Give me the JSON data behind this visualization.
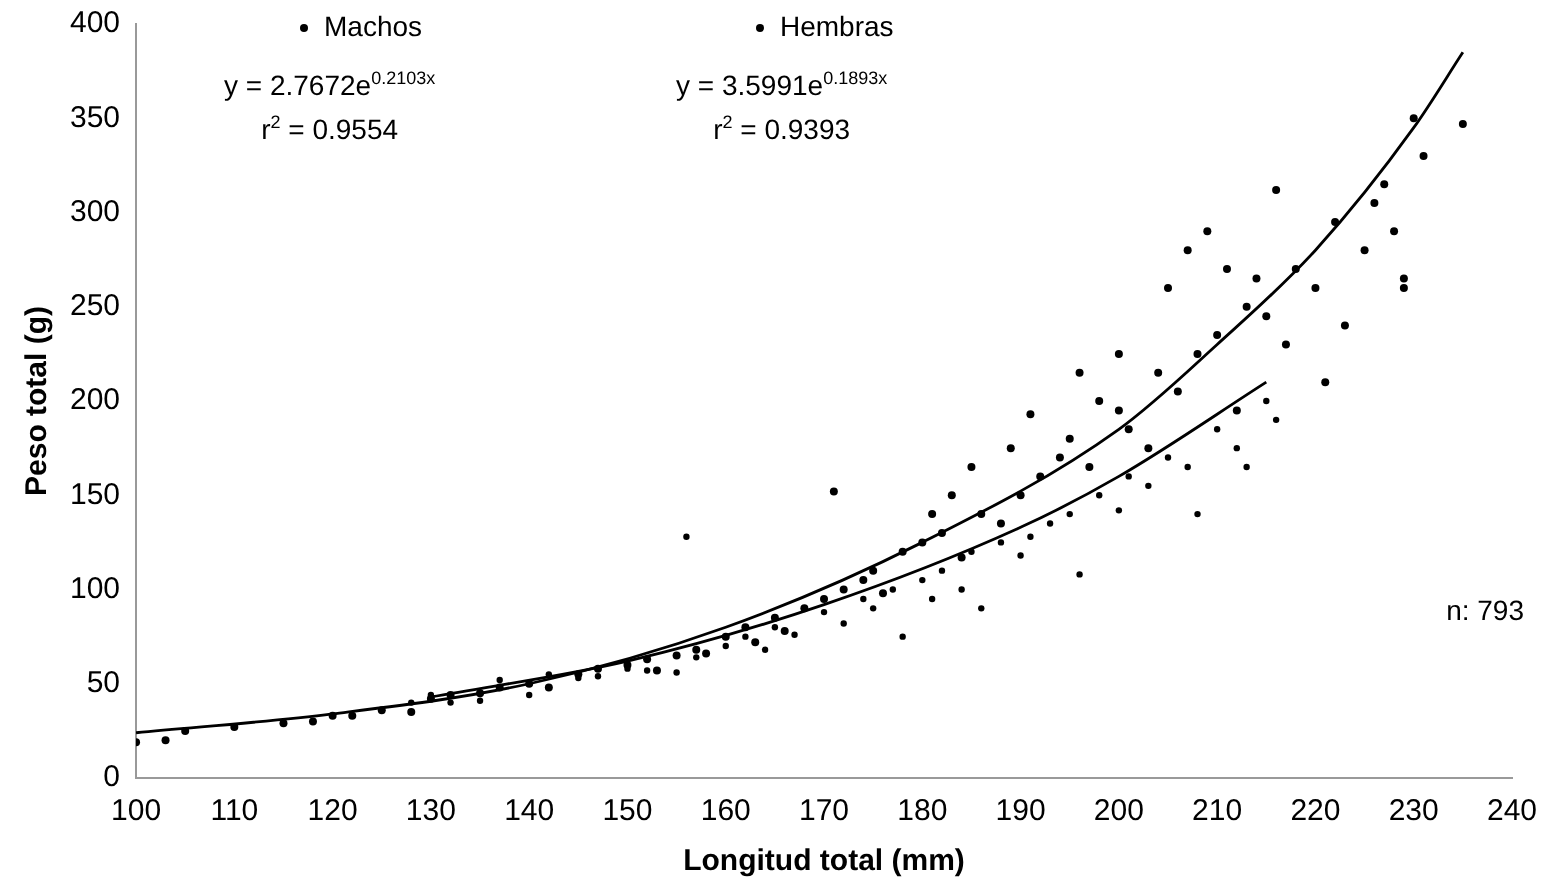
{
  "chart_data": {
    "type": "scatter",
    "xlabel": "Longitud total (mm)",
    "ylabel": "Peso total (g)",
    "xlim": [
      100,
      240
    ],
    "xticks": [
      100,
      110,
      120,
      130,
      140,
      150,
      160,
      170,
      180,
      190,
      200,
      210,
      220,
      230,
      240
    ],
    "ylim": [
      0,
      400
    ],
    "yticks": [
      0,
      50,
      100,
      150,
      200,
      250,
      300,
      350,
      400
    ],
    "grid": false,
    "legend": "top",
    "marker": "circle",
    "annotations": [
      "y = 2.7672e$^{0.2103x}$\nr$^{2}$ = 0.9554",
      "y = 3.5991e$^{0.1893x}$\nr$^{2}$ = 0.9393",
      "n: 793"
    ],
    "series": [
      {
        "name": "Machos",
        "color": "#000000",
        "x": [
          100,
          103,
          105,
          110,
          115,
          118,
          120,
          122,
          125,
          128,
          130,
          132,
          135,
          137,
          140,
          142,
          145,
          147,
          150,
          152,
          153,
          155,
          157,
          158,
          160,
          162,
          163,
          165,
          166,
          168,
          170,
          171,
          172,
          174,
          175,
          176,
          178,
          180,
          181,
          182,
          183,
          184,
          185,
          186,
          188,
          189,
          190,
          191,
          192,
          194,
          195,
          196,
          197,
          198,
          200,
          200,
          201,
          203,
          204,
          205,
          206,
          207,
          208,
          209,
          210,
          211,
          212,
          213,
          214,
          215,
          216,
          217,
          218,
          220,
          221,
          222,
          223,
          225,
          226,
          227,
          228,
          229,
          229,
          230,
          231,
          235
        ],
        "values": [
          19,
          20,
          25,
          27,
          29,
          30,
          33,
          33,
          36,
          35,
          42,
          44,
          45,
          48,
          50,
          48,
          55,
          58,
          60,
          63,
          57,
          65,
          68,
          66,
          75,
          80,
          72,
          85,
          78,
          90,
          95,
          152,
          100,
          105,
          110,
          98,
          120,
          125,
          140,
          130,
          150,
          117,
          165,
          140,
          135,
          175,
          150,
          193,
          160,
          170,
          180,
          215,
          165,
          200,
          195,
          225,
          185,
          175,
          215,
          260,
          205,
          280,
          225,
          290,
          235,
          270,
          195,
          250,
          265,
          245,
          312,
          230,
          270,
          260,
          210,
          295,
          240,
          280,
          305,
          315,
          290,
          260,
          265,
          350,
          330,
          347
        ]
      },
      {
        "name": "Hembras",
        "color": "#000000",
        "x": [
          128,
          130,
          132,
          135,
          137,
          140,
          142,
          145,
          147,
          150,
          152,
          155,
          156,
          157,
          160,
          162,
          164,
          165,
          167,
          170,
          172,
          174,
          175,
          177,
          178,
          180,
          181,
          182,
          184,
          185,
          186,
          188,
          190,
          191,
          193,
          195,
          196,
          198,
          200,
          201,
          203,
          205,
          207,
          208,
          210,
          212,
          213,
          215,
          216
        ],
        "values": [
          40,
          44,
          40,
          41,
          52,
          44,
          55,
          53,
          54,
          58,
          57,
          56,
          128,
          64,
          70,
          75,
          68,
          80,
          76,
          88,
          82,
          95,
          90,
          100,
          75,
          105,
          95,
          110,
          100,
          120,
          90,
          125,
          118,
          128,
          135,
          140,
          108,
          150,
          142,
          160,
          155,
          170,
          165,
          140,
          185,
          175,
          165,
          200,
          190
        ]
      },
      {
        "type": "line",
        "marker": "none",
        "color": "#000000",
        "x": [
          100,
          120,
          140,
          160,
          180,
          200,
          210,
          220,
          230,
          235
        ],
        "values": [
          24,
          34,
          50,
          80,
          125,
          185,
          230,
          280,
          345,
          385
        ]
      },
      {
        "type": "line",
        "marker": "none",
        "color": "#000000",
        "x": [
          130,
          150,
          170,
          190,
          200,
          215
        ],
        "values": [
          43,
          62,
          92,
          133,
          160,
          210
        ]
      }
    ]
  }
}
